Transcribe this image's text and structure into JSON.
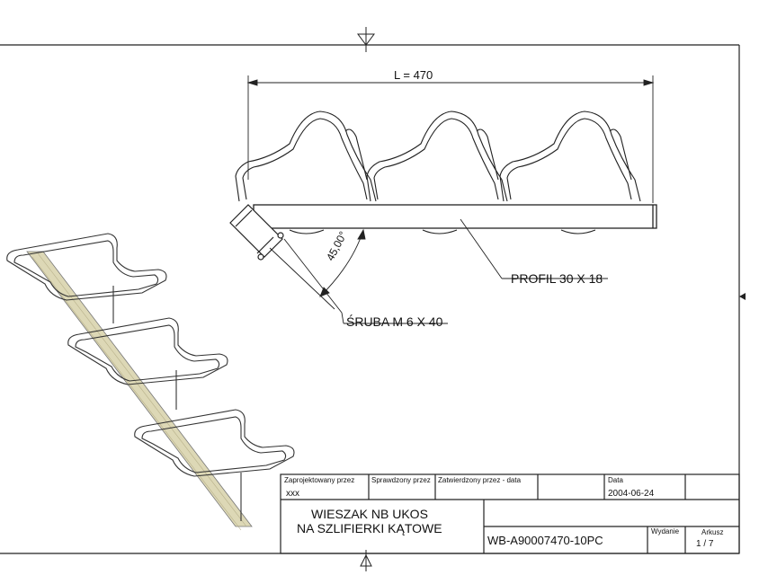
{
  "dimensions": {
    "length": "L = 470",
    "angle": "45,00°"
  },
  "callouts": {
    "profile": "PROFIL 30 X 18",
    "bolt": "ŚRUBA M 6 X 40"
  },
  "title_block": {
    "designed_by_label": "Zaprojektowany przez",
    "designed_by_value": "xxx",
    "checked_by_label": "Sprawdzony przez",
    "approved_by_label": "Zatwierdzony przez - data",
    "date_label": "Data",
    "date_value": "2004-06-24",
    "title_line1": "WIESZAK NB UKOS",
    "title_line2": "NA SZLIFIERKI KĄTOWE",
    "drawing_number": "WB-A90007470-10PC",
    "edition_label": "Wydanie",
    "sheet_label": "Arkusz",
    "sheet_value": "1  /  7"
  }
}
